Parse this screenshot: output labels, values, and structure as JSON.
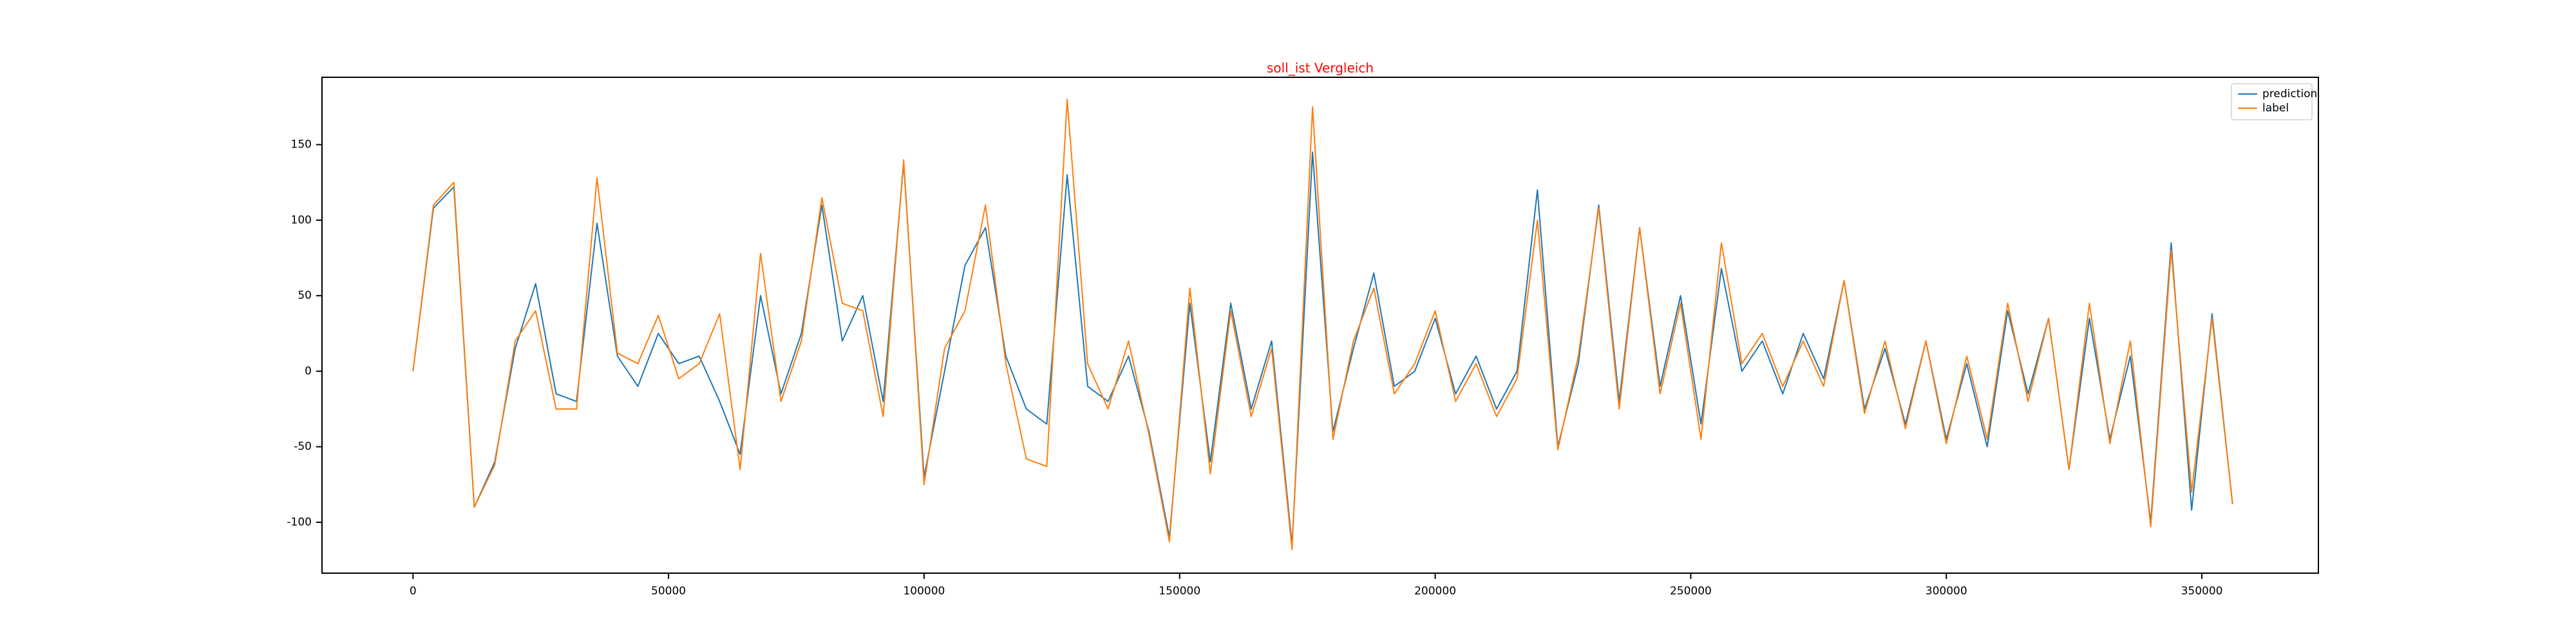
{
  "chart_data": {
    "type": "line",
    "title": "soll_ist Vergleich",
    "title_color": "#ff0000",
    "x": [
      0,
      4000,
      8000,
      12000,
      16000,
      20000,
      24000,
      28000,
      32000,
      36000,
      40000,
      44000,
      48000,
      52000,
      56000,
      60000,
      64000,
      68000,
      72000,
      76000,
      80000,
      84000,
      88000,
      92000,
      96000,
      100000,
      104000,
      108000,
      112000,
      116000,
      120000,
      124000,
      128000,
      132000,
      136000,
      140000,
      144000,
      148000,
      152000,
      156000,
      160000,
      164000,
      168000,
      172000,
      176000,
      180000,
      184000,
      188000,
      192000,
      196000,
      200000,
      204000,
      208000,
      212000,
      216000,
      220000,
      224000,
      228000,
      232000,
      236000,
      240000,
      244000,
      248000,
      252000,
      256000,
      260000,
      264000,
      268000,
      272000,
      276000,
      280000,
      284000,
      288000,
      292000,
      296000,
      300000,
      304000,
      308000,
      312000,
      316000,
      320000,
      324000,
      328000,
      332000,
      336000,
      340000,
      344000,
      348000,
      352000,
      356000
    ],
    "series": [
      {
        "name": "prediction",
        "color": "#1f77b4",
        "values": [
          0,
          108,
          122,
          -90,
          -60,
          15,
          58,
          -15,
          -20,
          98,
          10,
          -10,
          25,
          5,
          10,
          -20,
          -55,
          50,
          -15,
          25,
          110,
          20,
          50,
          -20,
          138,
          -70,
          0,
          70,
          95,
          10,
          -25,
          -35,
          130,
          -10,
          -20,
          10,
          -40,
          -110,
          45,
          -60,
          45,
          -25,
          20,
          -115,
          145,
          -40,
          15,
          65,
          -10,
          0,
          35,
          -15,
          10,
          -25,
          0,
          120,
          -50,
          5,
          110,
          -20,
          95,
          -10,
          50,
          -35,
          68,
          0,
          20,
          -15,
          25,
          -5,
          60,
          -25,
          15,
          -35,
          20,
          -45,
          5,
          -50,
          40,
          -15,
          35,
          -65,
          35,
          -45,
          10,
          -100,
          85,
          -92,
          38,
          -88
        ]
      },
      {
        "name": "label",
        "color": "#ff7f0e",
        "values": [
          0,
          110,
          125,
          -90,
          -62,
          20,
          40,
          -25,
          -25,
          128,
          12,
          5,
          37,
          -5,
          5,
          38,
          -65,
          78,
          -20,
          20,
          115,
          45,
          40,
          -30,
          140,
          -75,
          15,
          40,
          110,
          5,
          -58,
          -63,
          180,
          5,
          -25,
          20,
          -42,
          -113,
          55,
          -68,
          40,
          -30,
          15,
          -118,
          175,
          -45,
          20,
          55,
          -15,
          5,
          40,
          -20,
          5,
          -30,
          -5,
          100,
          -52,
          10,
          108,
          -25,
          95,
          -15,
          45,
          -45,
          85,
          5,
          25,
          -10,
          20,
          -10,
          60,
          -28,
          20,
          -38,
          20,
          -48,
          10,
          -45,
          45,
          -20,
          35,
          -65,
          45,
          -48,
          20,
          -103,
          80,
          -80,
          35,
          -88
        ]
      }
    ],
    "xlim": [
      -17800,
      372800
    ],
    "ylim": [
      -133.7,
      194.6
    ],
    "xticks": [
      0,
      50000,
      100000,
      150000,
      200000,
      250000,
      300000,
      350000
    ],
    "yticks": [
      -100,
      -50,
      0,
      50,
      100,
      150
    ],
    "grid": false,
    "legend": "upper right"
  }
}
